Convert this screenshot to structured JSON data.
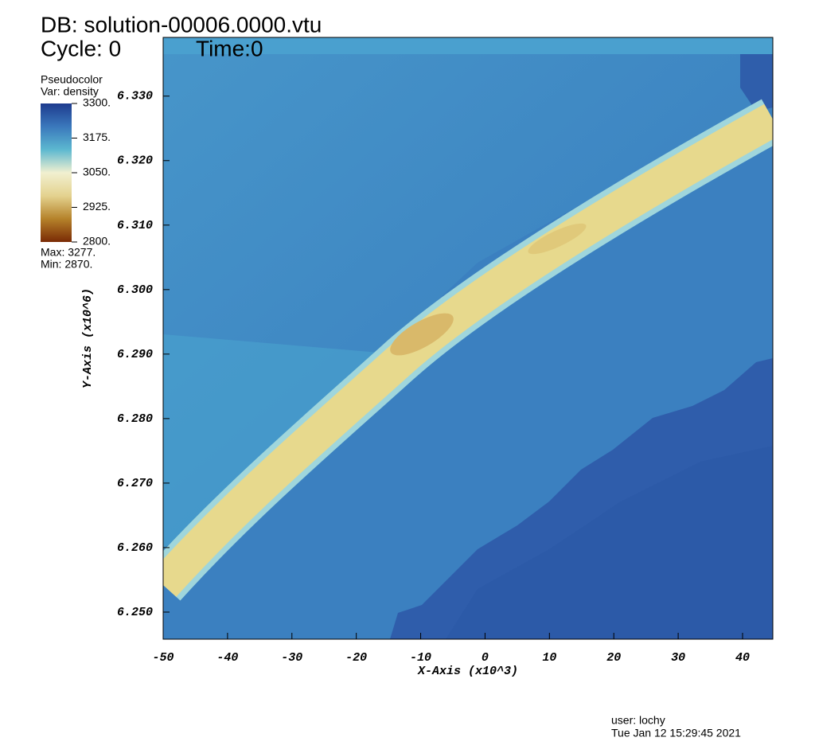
{
  "chart_data": {
    "type": "pseudocolor",
    "title": "DB: solution-00006.0000.vtu",
    "cycle": "Cycle: 0",
    "time": "Time:0",
    "legend_title": "Pseudocolor",
    "variable": "Var: density",
    "max_label": "Max:  3277.",
    "min_label": "Min:  2870.",
    "x_label": "X-Axis (x10^3)",
    "y_label": "Y-Axis (x10^6)",
    "user": "user: lochy",
    "date": "Tue Jan 12 15:29:45 2021",
    "xlim": [
      -50,
      44.7
    ],
    "xticks": [
      -50,
      -40,
      -30,
      -20,
      -10,
      0,
      10,
      20,
      30,
      40
    ],
    "ylim": [
      6.2458,
      6.3391
    ],
    "yticks": [
      {
        "value": 6.25,
        "label": "6.250"
      },
      {
        "value": 6.26,
        "label": "6.260"
      },
      {
        "value": 6.27,
        "label": "6.270"
      },
      {
        "value": 6.28,
        "label": "6.280"
      },
      {
        "value": 6.29,
        "label": "6.290"
      },
      {
        "value": 6.3,
        "label": "6.300"
      },
      {
        "value": 6.31,
        "label": "6.310"
      },
      {
        "value": 6.32,
        "label": "6.320"
      },
      {
        "value": 6.33,
        "label": "6.330"
      }
    ],
    "colorbar_lim": [
      2800,
      3300
    ],
    "colorbar_ticks": [
      {
        "value": 3300,
        "label": "3300."
      },
      {
        "value": 3175,
        "label": "3175."
      },
      {
        "value": 3050,
        "label": "3050."
      },
      {
        "value": 2925,
        "label": "2925."
      },
      {
        "value": 2800,
        "label": "2800."
      }
    ],
    "colormap": [
      "#7a2a05",
      "#b5822a",
      "#e4d28f",
      "#f1f0d0",
      "#5cb8d0",
      "#3a78bc",
      "#1d3b8e"
    ]
  }
}
